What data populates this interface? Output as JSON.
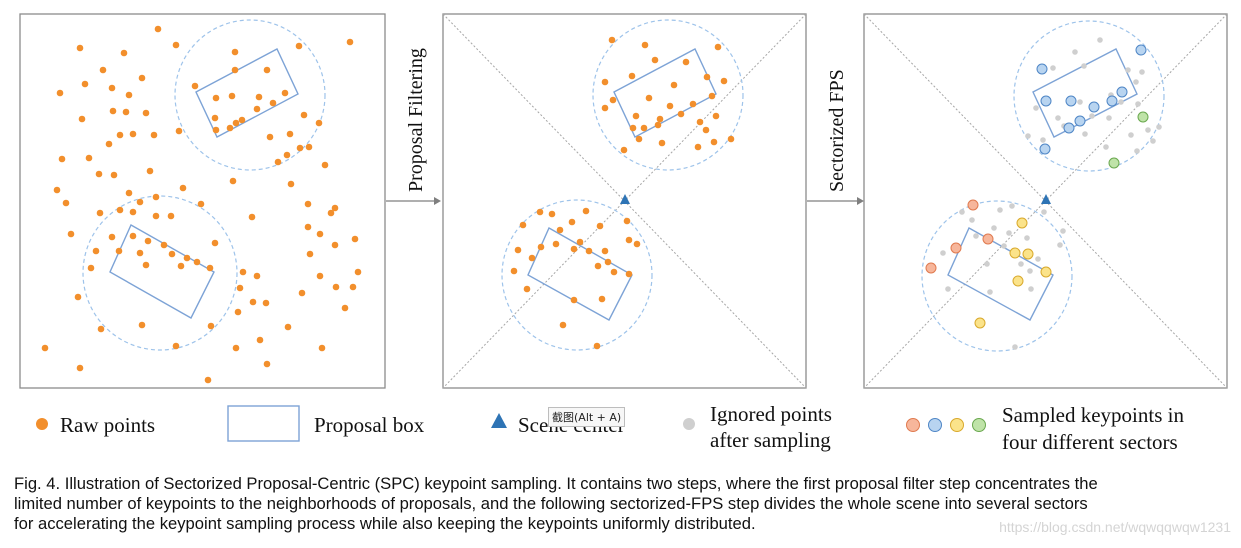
{
  "figure": {
    "arrow_labels": {
      "step1": "Proposal Filtering",
      "step2": "Sectorized FPS"
    },
    "legend": {
      "raw_points": "Raw points",
      "proposal_box": "Proposal box",
      "scene_center": "Scene center",
      "ignored_line1": "Ignored points",
      "ignored_line2": "after sampling",
      "sampled_line1": "Sampled keypoints in",
      "sampled_line2": "four different sectors"
    },
    "colors": {
      "raw": "#f28f2c",
      "box": "#7da3d6",
      "circle": "#9ec3ea",
      "center": "#2e74b5",
      "ignored": "#cfcfcf",
      "sector_red": "#f7b69b",
      "sector_blue": "#b8d4f0",
      "sector_yellow": "#fbe38a",
      "sector_green": "#bfe3a8"
    }
  },
  "tooltip": {
    "text": "截图(Alt + A)"
  },
  "caption": {
    "line1": "Fig. 4. Illustration of Sectorized Proposal-Centric (SPC) keypoint sampling. It contains two steps, where the first proposal filter step concentrates the",
    "line2": "limited number of keypoints to the neighborhoods of proposals, and the following sectorized-FPS step divides the whole scene into several sectors",
    "line3": "for accelerating the keypoint sampling process while also keeping the keypoints uniformly distributed."
  },
  "watermark": {
    "text": "https://blog.csdn.net/wqwqqwqw1231"
  }
}
